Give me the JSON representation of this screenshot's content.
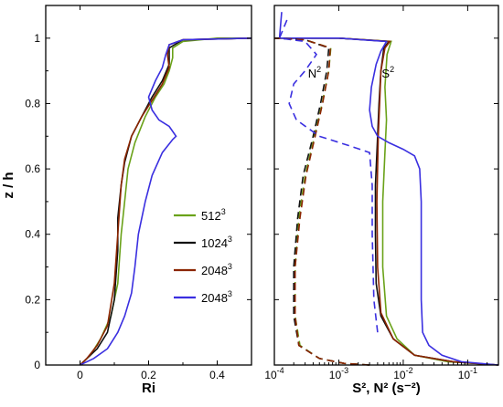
{
  "chart_data": [
    {
      "type": "line",
      "xlabel": "Ri",
      "ylabel": "z / h",
      "xlim": [
        -0.1,
        0.5
      ],
      "ylim": [
        0,
        1.1
      ],
      "xticks": [
        {
          "v": 0,
          "label": "0"
        },
        {
          "v": 0.2,
          "label": "0.2"
        },
        {
          "v": 0.4,
          "label": "0.4"
        }
      ],
      "yticks": [
        {
          "v": 0,
          "label": "0"
        },
        {
          "v": 0.2,
          "label": "0.2"
        },
        {
          "v": 0.4,
          "label": "0.4"
        },
        {
          "v": 0.6,
          "label": "0.6"
        },
        {
          "v": 0.8,
          "label": "0.8"
        },
        {
          "v": 1,
          "label": "1"
        }
      ],
      "legend": {
        "placement": "center-right",
        "entries": [
          {
            "base": "512",
            "sup": "3",
            "color": "#6aa219"
          },
          {
            "base": "1024",
            "sup": "3",
            "color": "#111111"
          },
          {
            "base": "2048",
            "sup": "3",
            "color": "#8b2500"
          },
          {
            "base": "2048",
            "sup": "3",
            "color": "#3a2fe0"
          }
        ]
      },
      "series": [
        {
          "color": "#6aa219",
          "points": [
            [
              0,
              0
            ],
            [
              0.01,
              0.01
            ],
            [
              0.03,
              0.03
            ],
            [
              0.06,
              0.08
            ],
            [
              0.09,
              0.15
            ],
            [
              0.11,
              0.25
            ],
            [
              0.12,
              0.4
            ],
            [
              0.13,
              0.5
            ],
            [
              0.14,
              0.6
            ],
            [
              0.16,
              0.68
            ],
            [
              0.19,
              0.76
            ],
            [
              0.22,
              0.82
            ],
            [
              0.245,
              0.86
            ],
            [
              0.26,
              0.9
            ],
            [
              0.27,
              0.94
            ],
            [
              0.27,
              0.97
            ],
            [
              0.3,
              0.99
            ],
            [
              0.4,
              1.0
            ],
            [
              0.5,
              1.0
            ]
          ]
        },
        {
          "color": "#111111",
          "points": [
            [
              0,
              0
            ],
            [
              0.02,
              0.02
            ],
            [
              0.05,
              0.05
            ],
            [
              0.08,
              0.1
            ],
            [
              0.1,
              0.2
            ],
            [
              0.11,
              0.35
            ],
            [
              0.11,
              0.45
            ],
            [
              0.12,
              0.55
            ],
            [
              0.13,
              0.62
            ],
            [
              0.15,
              0.7
            ],
            [
              0.18,
              0.76
            ],
            [
              0.21,
              0.82
            ],
            [
              0.24,
              0.87
            ],
            [
              0.26,
              0.92
            ],
            [
              0.26,
              0.97
            ],
            [
              0.3,
              0.995
            ],
            [
              0.5,
              1.0
            ]
          ]
        },
        {
          "color": "#8b2500",
          "points": [
            [
              0,
              0
            ],
            [
              0.02,
              0.02
            ],
            [
              0.05,
              0.06
            ],
            [
              0.08,
              0.12
            ],
            [
              0.1,
              0.25
            ],
            [
              0.11,
              0.4
            ],
            [
              0.12,
              0.55
            ],
            [
              0.13,
              0.63
            ],
            [
              0.15,
              0.7
            ],
            [
              0.18,
              0.76
            ],
            [
              0.21,
              0.81
            ],
            [
              0.24,
              0.86
            ],
            [
              0.26,
              0.91
            ],
            [
              0.255,
              0.95
            ],
            [
              0.26,
              0.98
            ],
            [
              0.3,
              0.995
            ],
            [
              0.5,
              1.0
            ]
          ]
        },
        {
          "color": "#3a2fe0",
          "points": [
            [
              0,
              0
            ],
            [
              0.04,
              0.02
            ],
            [
              0.08,
              0.05
            ],
            [
              0.11,
              0.1
            ],
            [
              0.13,
              0.15
            ],
            [
              0.15,
              0.22
            ],
            [
              0.16,
              0.3
            ],
            [
              0.17,
              0.4
            ],
            [
              0.19,
              0.5
            ],
            [
              0.21,
              0.58
            ],
            [
              0.24,
              0.65
            ],
            [
              0.27,
              0.69
            ],
            [
              0.28,
              0.7
            ],
            [
              0.26,
              0.73
            ],
            [
              0.23,
              0.75
            ],
            [
              0.21,
              0.78
            ],
            [
              0.2,
              0.82
            ],
            [
              0.22,
              0.87
            ],
            [
              0.24,
              0.91
            ],
            [
              0.25,
              0.95
            ],
            [
              0.26,
              0.98
            ],
            [
              0.3,
              0.995
            ],
            [
              0.5,
              1.0
            ]
          ]
        }
      ]
    },
    {
      "type": "line",
      "xlabel": "S², N² (s⁻²)",
      "xscale": "log",
      "ylim": [
        0,
        1.1
      ],
      "xlim": [
        0.0001,
        0.3
      ],
      "xticks": [
        {
          "v": 0.0001,
          "base": "10",
          "sup": "-4"
        },
        {
          "v": 0.001,
          "base": "10",
          "sup": "-3"
        },
        {
          "v": 0.01,
          "base": "10",
          "sup": "-2"
        },
        {
          "v": 0.1,
          "base": "10",
          "sup": "-1"
        }
      ],
      "annotations": [
        {
          "base": "N",
          "sup": "2",
          "x": 0.00042,
          "y": 0.88
        },
        {
          "base": "S",
          "sup": "2",
          "x": 0.0058,
          "y": 0.88
        }
      ],
      "series": [
        {
          "color": "#6aa219",
          "style": "solid",
          "points": [
            [
              0.3,
              0
            ],
            [
              0.05,
              0.01
            ],
            [
              0.015,
              0.03
            ],
            [
              0.008,
              0.08
            ],
            [
              0.0055,
              0.15
            ],
            [
              0.0048,
              0.3
            ],
            [
              0.0048,
              0.5
            ],
            [
              0.0052,
              0.65
            ],
            [
              0.0055,
              0.75
            ],
            [
              0.0052,
              0.85
            ],
            [
              0.0056,
              0.95
            ],
            [
              0.0065,
              0.99
            ],
            [
              0.001,
              1.0
            ],
            [
              0.0001,
              1.0
            ]
          ]
        },
        {
          "color": "#111111",
          "style": "solid",
          "points": [
            [
              0.3,
              0
            ],
            [
              0.06,
              0.01
            ],
            [
              0.015,
              0.03
            ],
            [
              0.007,
              0.08
            ],
            [
              0.0045,
              0.15
            ],
            [
              0.0038,
              0.25
            ],
            [
              0.0037,
              0.4
            ],
            [
              0.0037,
              0.55
            ],
            [
              0.004,
              0.7
            ],
            [
              0.0042,
              0.8
            ],
            [
              0.0045,
              0.9
            ],
            [
              0.005,
              0.97
            ],
            [
              0.006,
              0.99
            ],
            [
              0.001,
              1.0
            ],
            [
              0.0001,
              1.0
            ]
          ]
        },
        {
          "color": "#8b2500",
          "style": "solid",
          "points": [
            [
              0.3,
              0
            ],
            [
              0.06,
              0.01
            ],
            [
              0.015,
              0.03
            ],
            [
              0.007,
              0.08
            ],
            [
              0.0045,
              0.16
            ],
            [
              0.004,
              0.3
            ],
            [
              0.0039,
              0.5
            ],
            [
              0.0041,
              0.7
            ],
            [
              0.0043,
              0.8
            ],
            [
              0.0045,
              0.9
            ],
            [
              0.0052,
              0.97
            ],
            [
              0.0062,
              0.99
            ],
            [
              0.001,
              1.0
            ],
            [
              0.0001,
              1.0
            ]
          ]
        },
        {
          "color": "#3a2fe0",
          "style": "solid",
          "points": [
            [
              0.3,
              0
            ],
            [
              0.08,
              0.01
            ],
            [
              0.04,
              0.03
            ],
            [
              0.025,
              0.06
            ],
            [
              0.02,
              0.1
            ],
            [
              0.019,
              0.2
            ],
            [
              0.019,
              0.35
            ],
            [
              0.019,
              0.5
            ],
            [
              0.018,
              0.6
            ],
            [
              0.015,
              0.64
            ],
            [
              0.01,
              0.66
            ],
            [
              0.006,
              0.68
            ],
            [
              0.004,
              0.7
            ],
            [
              0.0033,
              0.73
            ],
            [
              0.003,
              0.78
            ],
            [
              0.0032,
              0.85
            ],
            [
              0.0038,
              0.92
            ],
            [
              0.0045,
              0.96
            ],
            [
              0.0055,
              0.99
            ],
            [
              0.001,
              1.0
            ],
            [
              0.00012,
              1.0
            ],
            [
              0.00013,
              1.08
            ]
          ]
        },
        {
          "color": "#6aa219",
          "style": "dashed",
          "points": [
            [
              0.003,
              0
            ],
            [
              0.0012,
              0.005
            ],
            [
              0.0005,
              0.02
            ],
            [
              0.00025,
              0.06
            ],
            [
              0.00021,
              0.15
            ],
            [
              0.00021,
              0.3
            ],
            [
              0.00024,
              0.45
            ],
            [
              0.0003,
              0.58
            ],
            [
              0.00042,
              0.7
            ],
            [
              0.00055,
              0.8
            ],
            [
              0.0007,
              0.9
            ],
            [
              0.00075,
              0.97
            ],
            [
              0.0003,
              0.995
            ],
            [
              0.0001,
              1.0
            ]
          ]
        },
        {
          "color": "#111111",
          "style": "dashed",
          "points": [
            [
              0.003,
              0
            ],
            [
              0.0012,
              0.005
            ],
            [
              0.0005,
              0.02
            ],
            [
              0.00024,
              0.06
            ],
            [
              0.0002,
              0.15
            ],
            [
              0.0002,
              0.3
            ],
            [
              0.00023,
              0.45
            ],
            [
              0.00028,
              0.58
            ],
            [
              0.0004,
              0.7
            ],
            [
              0.00052,
              0.8
            ],
            [
              0.00065,
              0.9
            ],
            [
              0.0007,
              0.97
            ],
            [
              0.0003,
              0.995
            ],
            [
              0.0001,
              1.0
            ]
          ]
        },
        {
          "color": "#8b2500",
          "style": "dashed",
          "points": [
            [
              0.003,
              0
            ],
            [
              0.0012,
              0.005
            ],
            [
              0.0005,
              0.02
            ],
            [
              0.00024,
              0.06
            ],
            [
              0.00021,
              0.15
            ],
            [
              0.00021,
              0.3
            ],
            [
              0.00025,
              0.45
            ],
            [
              0.00031,
              0.58
            ],
            [
              0.00043,
              0.7
            ],
            [
              0.00056,
              0.8
            ],
            [
              0.0007,
              0.9
            ],
            [
              0.00074,
              0.97
            ],
            [
              0.0003,
              0.995
            ],
            [
              0.0001,
              1.0
            ]
          ]
        },
        {
          "color": "#3a2fe0",
          "style": "dashed",
          "points": [
            [
              0.004,
              0.1
            ],
            [
              0.0035,
              0.2
            ],
            [
              0.0033,
              0.4
            ],
            [
              0.0033,
              0.55
            ],
            [
              0.003,
              0.65
            ],
            [
              0.0015,
              0.67
            ],
            [
              0.0005,
              0.7
            ],
            [
              0.00022,
              0.75
            ],
            [
              0.00017,
              0.8
            ],
            [
              0.0002,
              0.86
            ],
            [
              0.0003,
              0.9
            ],
            [
              0.00045,
              0.95
            ],
            [
              0.0003,
              0.99
            ],
            [
              0.00012,
              1.0
            ],
            [
              0.00016,
              1.06
            ]
          ]
        }
      ]
    }
  ]
}
